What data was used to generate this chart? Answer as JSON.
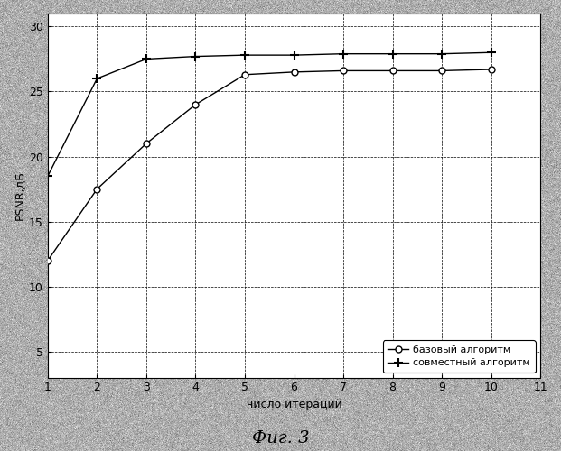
{
  "title": "",
  "xlabel": "число итераций",
  "ylabel": "PSNR,дБ",
  "caption": "Фиг. 3",
  "xlim": [
    1,
    11
  ],
  "ylim": [
    3,
    31
  ],
  "xticks": [
    1,
    2,
    3,
    4,
    5,
    6,
    7,
    8,
    9,
    10,
    11
  ],
  "yticks": [
    5,
    10,
    15,
    20,
    25,
    30
  ],
  "base_x": [
    1,
    2,
    3,
    4,
    5,
    6,
    7,
    8,
    9,
    10
  ],
  "base_y": [
    12.0,
    17.5,
    21.0,
    24.0,
    26.3,
    26.5,
    26.6,
    26.6,
    26.6,
    26.7
  ],
  "joint_x": [
    1,
    2,
    3,
    4,
    5,
    6,
    7,
    8,
    9,
    10
  ],
  "joint_y": [
    18.5,
    26.0,
    27.5,
    27.7,
    27.8,
    27.8,
    27.9,
    27.9,
    27.9,
    28.0
  ],
  "base_label": "базовый алгоритм",
  "joint_label": "совместный алгоритм",
  "line_color": "#000000",
  "bg_color": "#b0b0b0",
  "plot_bg_color": "#ffffff",
  "grid_color": "#000000",
  "legend_bg": "#ffffff",
  "marker_size_base": 5,
  "marker_size_joint": 7,
  "linewidth": 1.0,
  "grid_linewidth": 0.5,
  "grid_linestyle": "--",
  "xlabel_fontsize": 9,
  "ylabel_fontsize": 9,
  "tick_fontsize": 9,
  "legend_fontsize": 8,
  "caption_fontsize": 14
}
